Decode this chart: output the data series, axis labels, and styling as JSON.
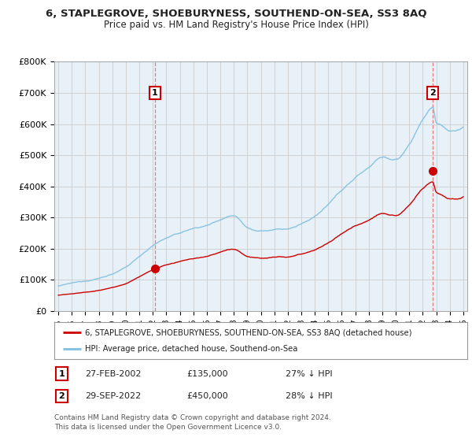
{
  "title": "6, STAPLEGROVE, SHOEBURYNESS, SOUTHEND-ON-SEA, SS3 8AQ",
  "subtitle": "Price paid vs. HM Land Registry's House Price Index (HPI)",
  "ylim": [
    0,
    800000
  ],
  "yticks": [
    0,
    100000,
    200000,
    300000,
    400000,
    500000,
    600000,
    700000,
    800000
  ],
  "ytick_labels": [
    "£0",
    "£100K",
    "£200K",
    "£300K",
    "£400K",
    "£500K",
    "£600K",
    "£700K",
    "£800K"
  ],
  "hpi_color": "#7fbfdf",
  "price_color": "#cc0000",
  "vline_color": "#e08080",
  "sale1_year": 2002.15,
  "sale1_price": 135000,
  "sale2_year": 2022.75,
  "sale2_price": 450000,
  "legend_house_label": "6, STAPLEGROVE, SHOEBURYNESS, SOUTHEND-ON-SEA, SS3 8AQ (detached house)",
  "legend_hpi_label": "HPI: Average price, detached house, Southend-on-Sea",
  "table_row1": [
    "1",
    "27-FEB-2002",
    "£135,000",
    "27% ↓ HPI"
  ],
  "table_row2": [
    "2",
    "29-SEP-2022",
    "£450,000",
    "28% ↓ HPI"
  ],
  "footer": "Contains HM Land Registry data © Crown copyright and database right 2024.\nThis data is licensed under the Open Government Licence v3.0.",
  "background_color": "#ffffff",
  "grid_color": "#cccccc",
  "plot_bg": "#e8f0f8"
}
